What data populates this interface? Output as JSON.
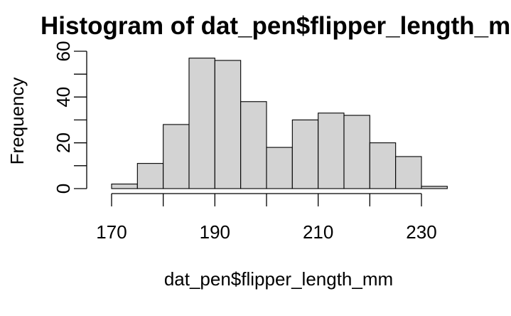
{
  "chart_data": {
    "type": "bar",
    "title": "Histogram of dat_pen$flipper_length_mm",
    "xlabel": "dat_pen$flipper_length_mm",
    "ylabel": "Frequency",
    "bin_edges": [
      170,
      175,
      180,
      185,
      190,
      195,
      200,
      205,
      210,
      215,
      220,
      225,
      230,
      235
    ],
    "values": [
      2,
      11,
      28,
      57,
      56,
      38,
      18,
      30,
      33,
      32,
      20,
      14,
      1
    ],
    "x_ticks": [
      170,
      190,
      210,
      230
    ],
    "y_ticks": [
      0,
      20,
      40,
      60
    ],
    "xlim": [
      170,
      235
    ],
    "ylim": [
      0,
      60
    ],
    "bar_fill": "#d3d3d3",
    "grid": false
  }
}
